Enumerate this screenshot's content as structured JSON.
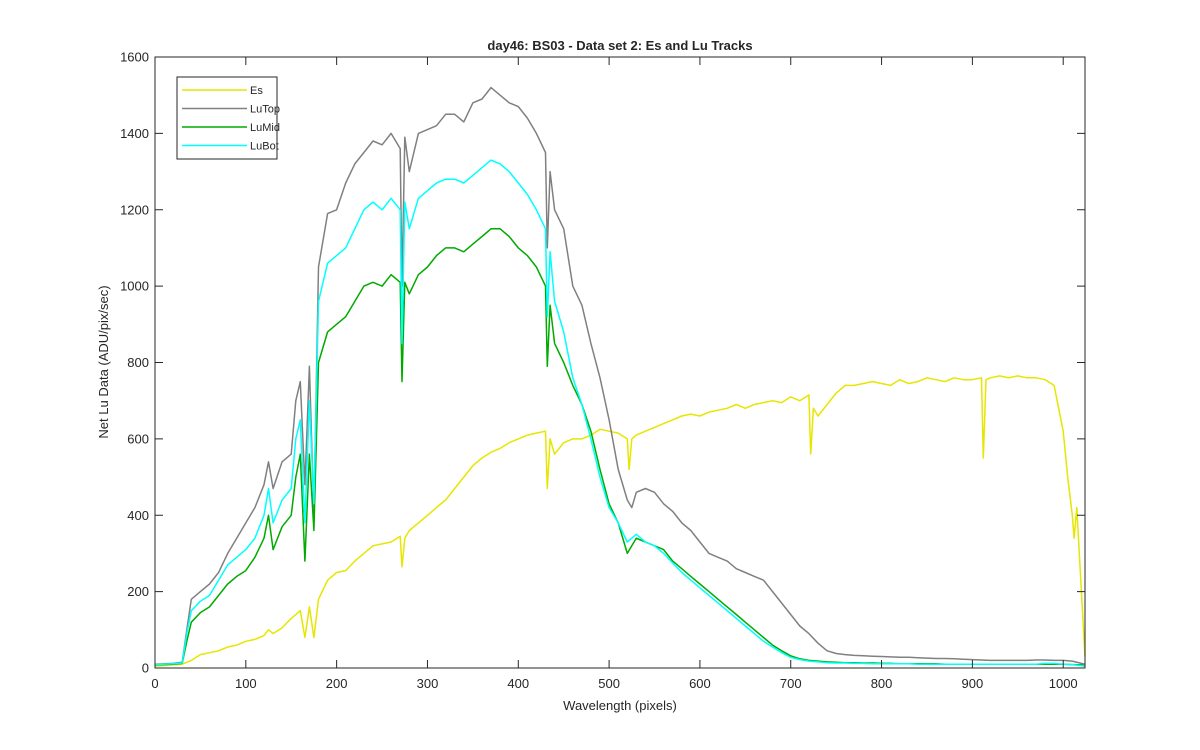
{
  "chart_data": {
    "type": "line",
    "title": "day46: BS03 - Data set 2: Es and Lu Tracks",
    "xlabel": "Wavelength (pixels)",
    "ylabel": "Net Lu Data (ADU/pix/sec)",
    "xlim": [
      0,
      1024
    ],
    "ylim": [
      0,
      1600
    ],
    "xticks": [
      "0",
      "100",
      "200",
      "300",
      "400",
      "500",
      "600",
      "700",
      "800",
      "900",
      "1000"
    ],
    "yticks": [
      "0",
      "200",
      "400",
      "600",
      "800",
      "1000",
      "1200",
      "1400",
      "1600"
    ],
    "grid": false,
    "legend": "top-left",
    "series": [
      {
        "name": "Es",
        "color": "#e6e600",
        "x": [
          0,
          30,
          40,
          50,
          60,
          70,
          80,
          90,
          100,
          110,
          120,
          125,
          130,
          140,
          150,
          160,
          165,
          170,
          175,
          180,
          190,
          200,
          210,
          220,
          230,
          240,
          250,
          260,
          270,
          272,
          275,
          280,
          290,
          300,
          310,
          320,
          330,
          340,
          350,
          360,
          370,
          380,
          390,
          400,
          410,
          420,
          430,
          432,
          435,
          440,
          450,
          460,
          470,
          480,
          490,
          500,
          510,
          520,
          522,
          525,
          530,
          540,
          550,
          560,
          570,
          580,
          590,
          600,
          610,
          620,
          630,
          640,
          650,
          660,
          670,
          680,
          690,
          700,
          710,
          720,
          722,
          725,
          730,
          740,
          750,
          760,
          770,
          780,
          790,
          800,
          810,
          820,
          830,
          840,
          850,
          860,
          870,
          880,
          890,
          900,
          910,
          912,
          915,
          920,
          930,
          940,
          950,
          960,
          970,
          980,
          990,
          1000,
          1005,
          1010,
          1012,
          1015,
          1020,
          1024
        ],
        "y": [
          5,
          10,
          20,
          35,
          40,
          45,
          55,
          60,
          70,
          75,
          85,
          100,
          90,
          105,
          130,
          150,
          80,
          160,
          80,
          180,
          230,
          250,
          255,
          280,
          300,
          320,
          325,
          330,
          345,
          265,
          340,
          360,
          380,
          400,
          420,
          440,
          470,
          500,
          530,
          550,
          565,
          575,
          590,
          600,
          610,
          615,
          620,
          470,
          600,
          560,
          590,
          600,
          600,
          610,
          625,
          620,
          615,
          600,
          520,
          600,
          610,
          620,
          630,
          640,
          650,
          660,
          665,
          660,
          670,
          675,
          680,
          690,
          680,
          690,
          695,
          700,
          695,
          710,
          700,
          715,
          560,
          680,
          660,
          690,
          720,
          740,
          740,
          745,
          750,
          745,
          740,
          755,
          745,
          750,
          760,
          755,
          750,
          760,
          755,
          755,
          760,
          550,
          755,
          760,
          765,
          760,
          765,
          760,
          760,
          755,
          740,
          620,
          500,
          400,
          340,
          420,
          200,
          30
        ]
      },
      {
        "name": "LuTop",
        "color": "#808080",
        "x": [
          0,
          20,
          30,
          35,
          40,
          50,
          60,
          70,
          80,
          90,
          100,
          110,
          120,
          125,
          130,
          140,
          150,
          155,
          160,
          165,
          170,
          175,
          180,
          190,
          200,
          210,
          220,
          230,
          240,
          250,
          260,
          270,
          272,
          275,
          280,
          290,
          300,
          310,
          320,
          330,
          340,
          350,
          360,
          370,
          380,
          390,
          400,
          410,
          420,
          430,
          432,
          435,
          440,
          450,
          460,
          470,
          480,
          490,
          500,
          510,
          520,
          525,
          530,
          540,
          550,
          560,
          570,
          580,
          590,
          600,
          610,
          620,
          630,
          640,
          650,
          660,
          670,
          680,
          690,
          700,
          710,
          720,
          730,
          740,
          750,
          760,
          770,
          780,
          790,
          800,
          810,
          820,
          830,
          840,
          850,
          860,
          870,
          880,
          890,
          900,
          910,
          920,
          930,
          940,
          950,
          960,
          970,
          980,
          990,
          1000,
          1010,
          1020,
          1024
        ],
        "y": [
          10,
          12,
          15,
          100,
          180,
          200,
          220,
          250,
          300,
          340,
          380,
          420,
          480,
          540,
          470,
          540,
          560,
          700,
          750,
          480,
          790,
          400,
          1050,
          1190,
          1200,
          1270,
          1320,
          1350,
          1380,
          1370,
          1400,
          1360,
          1000,
          1390,
          1300,
          1400,
          1410,
          1420,
          1450,
          1450,
          1430,
          1480,
          1490,
          1520,
          1500,
          1480,
          1470,
          1440,
          1400,
          1350,
          1100,
          1300,
          1200,
          1150,
          1000,
          950,
          850,
          760,
          650,
          520,
          440,
          420,
          460,
          470,
          460,
          430,
          410,
          380,
          360,
          330,
          300,
          290,
          280,
          260,
          250,
          240,
          230,
          200,
          170,
          140,
          110,
          90,
          65,
          45,
          38,
          35,
          33,
          32,
          31,
          30,
          29,
          28,
          28,
          27,
          26,
          25,
          25,
          24,
          23,
          22,
          21,
          20,
          20,
          20,
          20,
          20,
          21,
          21,
          20,
          20,
          18,
          12,
          10
        ]
      },
      {
        "name": "LuMid",
        "color": "#00aa00",
        "x": [
          0,
          20,
          30,
          35,
          40,
          50,
          60,
          70,
          80,
          90,
          100,
          110,
          120,
          125,
          130,
          140,
          150,
          155,
          160,
          165,
          170,
          175,
          180,
          190,
          200,
          210,
          220,
          230,
          240,
          250,
          260,
          270,
          272,
          275,
          280,
          290,
          300,
          310,
          320,
          330,
          340,
          350,
          360,
          370,
          380,
          390,
          400,
          410,
          420,
          430,
          432,
          435,
          440,
          450,
          460,
          470,
          480,
          490,
          500,
          510,
          520,
          525,
          530,
          540,
          550,
          560,
          570,
          580,
          590,
          600,
          610,
          620,
          630,
          640,
          650,
          660,
          670,
          680,
          690,
          700,
          710,
          720,
          730,
          740,
          750,
          760,
          770,
          780,
          790,
          800,
          810,
          820,
          830,
          840,
          850,
          860,
          870,
          880,
          890,
          900,
          910,
          920,
          930,
          940,
          950,
          960,
          970,
          980,
          990,
          1000,
          1010,
          1020,
          1024
        ],
        "y": [
          8,
          10,
          12,
          70,
          120,
          145,
          160,
          190,
          220,
          240,
          255,
          290,
          340,
          400,
          310,
          370,
          400,
          500,
          560,
          280,
          560,
          360,
          800,
          880,
          900,
          920,
          960,
          1000,
          1010,
          1000,
          1030,
          1010,
          750,
          1010,
          980,
          1030,
          1050,
          1080,
          1100,
          1100,
          1090,
          1110,
          1130,
          1150,
          1150,
          1130,
          1100,
          1080,
          1050,
          1000,
          790,
          950,
          850,
          800,
          740,
          690,
          620,
          520,
          430,
          380,
          300,
          320,
          340,
          330,
          320,
          310,
          280,
          260,
          240,
          220,
          200,
          180,
          160,
          140,
          120,
          100,
          80,
          60,
          45,
          32,
          24,
          20,
          18,
          16,
          15,
          14,
          14,
          13,
          13,
          12,
          12,
          11,
          11,
          11,
          11,
          11,
          10,
          10,
          10,
          10,
          10,
          10,
          10,
          10,
          10,
          10,
          10,
          10,
          10,
          10,
          9,
          8,
          6
        ]
      },
      {
        "name": "LuBot",
        "color": "#00ffff",
        "x": [
          0,
          20,
          30,
          35,
          40,
          50,
          60,
          70,
          80,
          90,
          100,
          110,
          120,
          125,
          130,
          140,
          150,
          155,
          160,
          165,
          170,
          175,
          180,
          190,
          200,
          210,
          220,
          230,
          240,
          250,
          260,
          270,
          272,
          275,
          280,
          290,
          300,
          310,
          320,
          330,
          340,
          350,
          360,
          370,
          380,
          390,
          400,
          410,
          420,
          430,
          432,
          435,
          440,
          450,
          460,
          470,
          480,
          490,
          500,
          510,
          520,
          525,
          530,
          540,
          550,
          560,
          570,
          580,
          590,
          600,
          610,
          620,
          630,
          640,
          650,
          660,
          670,
          680,
          690,
          700,
          710,
          720,
          730,
          740,
          750,
          760,
          770,
          780,
          790,
          800,
          810,
          820,
          830,
          840,
          850,
          860,
          870,
          880,
          890,
          900,
          910,
          920,
          930,
          940,
          950,
          960,
          970,
          980,
          990,
          1000,
          1010,
          1020,
          1024
        ],
        "y": [
          9,
          11,
          13,
          90,
          150,
          175,
          190,
          230,
          270,
          290,
          310,
          340,
          400,
          470,
          380,
          440,
          470,
          600,
          650,
          380,
          700,
          430,
          960,
          1060,
          1080,
          1100,
          1150,
          1200,
          1220,
          1200,
          1230,
          1200,
          850,
          1220,
          1150,
          1230,
          1250,
          1270,
          1280,
          1280,
          1270,
          1290,
          1310,
          1330,
          1320,
          1300,
          1270,
          1240,
          1200,
          1150,
          920,
          1090,
          960,
          880,
          760,
          690,
          600,
          500,
          420,
          380,
          330,
          340,
          350,
          330,
          320,
          300,
          275,
          250,
          230,
          210,
          190,
          170,
          150,
          130,
          110,
          90,
          70,
          55,
          40,
          28,
          22,
          18,
          16,
          14,
          13,
          13,
          12,
          12,
          11,
          11,
          11,
          11,
          11,
          10,
          10,
          10,
          10,
          10,
          10,
          10,
          10,
          10,
          10,
          10,
          10,
          10,
          10,
          12,
          12,
          10,
          9,
          6,
          5
        ]
      }
    ]
  }
}
